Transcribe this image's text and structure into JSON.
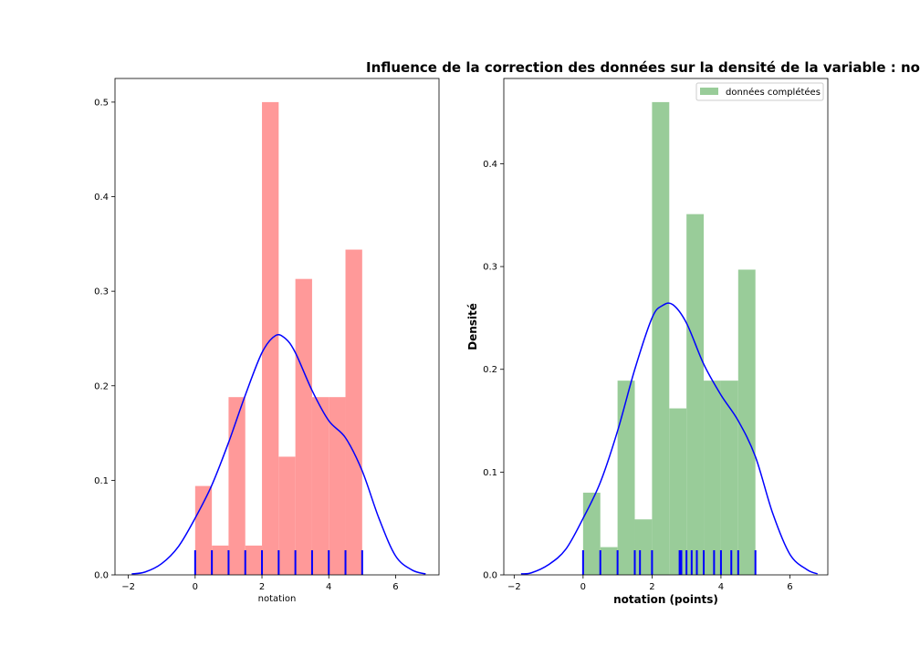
{
  "title": "Influence de la correction des données sur la densité de la variable : no",
  "chart_data": [
    {
      "type": "bar",
      "subtype": "histogram-with-kde-and-rug",
      "xlabel": "notation",
      "ylabel": "",
      "xlim": [
        -2.4,
        7.3
      ],
      "ylim": [
        0,
        0.525
      ],
      "xticks": [
        -2,
        0,
        2,
        4,
        6
      ],
      "yticks": [
        0.0,
        0.1,
        0.2,
        0.3,
        0.4,
        0.5
      ],
      "xtick_labels": [
        "−2",
        "0",
        "2",
        "4",
        "6"
      ],
      "ytick_labels": [
        "0.0",
        "0.1",
        "0.2",
        "0.3",
        "0.4",
        "0.5"
      ],
      "bin_edges": [
        0,
        0.5,
        1,
        1.5,
        2,
        2.5,
        3,
        3.5,
        4,
        4.5,
        5
      ],
      "values": [
        0.094,
        0.031,
        0.188,
        0.031,
        0.5,
        0.125,
        0.313,
        0.188,
        0.188,
        0.344
      ],
      "bar_color": "#ff9999",
      "kde": {
        "color": "#0000ff",
        "x": [
          -1.9,
          -1.5,
          -1,
          -0.5,
          0,
          0.5,
          1,
          1.5,
          2,
          2.4,
          2.7,
          3,
          3.5,
          4,
          4.5,
          5,
          5.5,
          6,
          6.5,
          6.9
        ],
        "y": [
          0.001,
          0.003,
          0.012,
          0.03,
          0.06,
          0.095,
          0.14,
          0.19,
          0.235,
          0.253,
          0.25,
          0.235,
          0.195,
          0.163,
          0.145,
          0.11,
          0.06,
          0.02,
          0.005,
          0.001
        ]
      },
      "rug": {
        "color": "#0000ff",
        "x": [
          0,
          0.5,
          1,
          1.5,
          2,
          2.5,
          3,
          3.5,
          4,
          4.5,
          5
        ]
      },
      "legend": null,
      "grid": false
    },
    {
      "type": "bar",
      "subtype": "histogram-with-kde-and-rug",
      "xlabel": "notation (points)",
      "ylabel": "Densité",
      "xlim": [
        -2.3,
        7.1
      ],
      "ylim": [
        0,
        0.483
      ],
      "xticks": [
        -2,
        0,
        2,
        4,
        6
      ],
      "yticks": [
        0.0,
        0.1,
        0.2,
        0.3,
        0.4
      ],
      "xtick_labels": [
        "−2",
        "0",
        "2",
        "4",
        "6"
      ],
      "ytick_labels": [
        "0.0",
        "0.1",
        "0.2",
        "0.3",
        "0.4"
      ],
      "bin_edges": [
        0,
        0.5,
        1,
        1.5,
        2,
        2.5,
        3,
        3.5,
        4,
        4.5,
        5
      ],
      "values": [
        0.08,
        0.027,
        0.189,
        0.054,
        0.46,
        0.162,
        0.351,
        0.189,
        0.189,
        0.297
      ],
      "bar_color": "#99cc99",
      "kde": {
        "color": "#0000ff",
        "x": [
          -1.8,
          -1.5,
          -1,
          -0.5,
          0,
          0.5,
          1,
          1.5,
          2,
          2.3,
          2.6,
          3,
          3.5,
          4,
          4.5,
          5,
          5.5,
          6,
          6.5,
          6.8
        ],
        "y": [
          0.001,
          0.002,
          0.01,
          0.025,
          0.055,
          0.09,
          0.14,
          0.2,
          0.25,
          0.262,
          0.263,
          0.245,
          0.205,
          0.175,
          0.15,
          0.115,
          0.06,
          0.02,
          0.005,
          0.001
        ]
      },
      "rug": {
        "color": "#0000ff",
        "x": [
          0,
          0.5,
          1,
          1.5,
          1.65,
          2,
          2.8,
          2.85,
          3,
          3.15,
          3.3,
          3.5,
          3.8,
          4,
          4.3,
          4.5,
          5
        ]
      },
      "legend": {
        "position": "upper right",
        "entries": [
          "données complétées"
        ]
      },
      "grid": false
    }
  ]
}
